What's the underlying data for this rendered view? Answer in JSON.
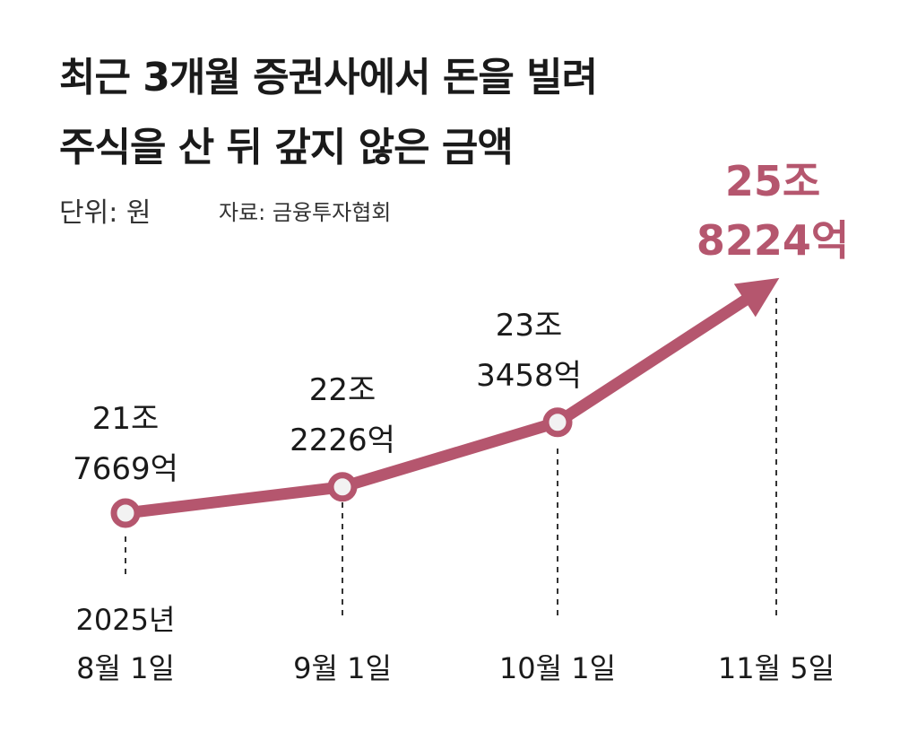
{
  "title_lines": [
    "최근 3개월 증권사에서 돈을 빌려",
    "주식을 산 뒤 갚지 않은 금액"
  ],
  "unit_label": "단위: 원",
  "source_label": "자료: 금융투자협회",
  "colors": {
    "accent": "#b5566e",
    "text": "#1a1a1a",
    "marker_fill": "#f2f2f2"
  },
  "chart_data": {
    "type": "line",
    "title": "최근 3개월 증권사에서 돈을 빌려 주식을 산 뒤 갚지 않은 금액",
    "unit": "원",
    "series": [
      {
        "values": [
          217669,
          222226,
          233458,
          258224
        ],
        "value_labels": [
          [
            "21조",
            "7669억"
          ],
          [
            "22조",
            "2226억"
          ],
          [
            "23조",
            "3458억"
          ],
          [
            "25조",
            "8224억"
          ]
        ]
      }
    ],
    "x_labels": [
      [
        "2025년",
        "8월 1일"
      ],
      [
        "9월 1일"
      ],
      [
        "10월 1일"
      ],
      [
        "11월 5일"
      ]
    ],
    "value_scale_note_unit": "억원",
    "highlight_last": true,
    "last_point_style": "arrow"
  }
}
